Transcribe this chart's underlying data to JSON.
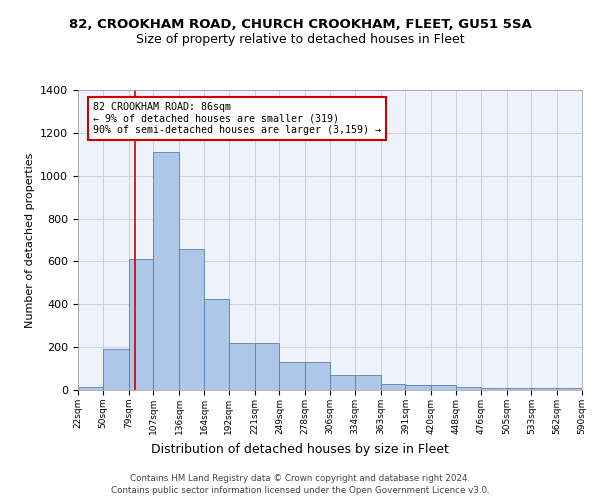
{
  "title1": "82, CROOKHAM ROAD, CHURCH CROOKHAM, FLEET, GU51 5SA",
  "title2": "Size of property relative to detached houses in Fleet",
  "xlabel": "Distribution of detached houses by size in Fleet",
  "ylabel": "Number of detached properties",
  "bar_values": [
    15,
    190,
    610,
    1110,
    660,
    425,
    220,
    220,
    130,
    130,
    70,
    70,
    30,
    25,
    25,
    15,
    10,
    10,
    10,
    10
  ],
  "bin_edges": [
    22,
    50,
    79,
    107,
    136,
    164,
    192,
    221,
    249,
    278,
    306,
    334,
    363,
    391,
    420,
    448,
    476,
    505,
    533,
    562,
    590
  ],
  "tick_labels": [
    "22sqm",
    "50sqm",
    "79sqm",
    "107sqm",
    "136sqm",
    "164sqm",
    "192sqm",
    "221sqm",
    "249sqm",
    "278sqm",
    "306sqm",
    "334sqm",
    "363sqm",
    "391sqm",
    "420sqm",
    "448sqm",
    "476sqm",
    "505sqm",
    "533sqm",
    "562sqm",
    "590sqm"
  ],
  "bar_color": "#aec6e8",
  "bar_edge_color": "#5580b0",
  "vline_x": 86,
  "vline_color": "#cc0000",
  "annotation_box_text": "82 CROOKHAM ROAD: 86sqm\n← 9% of detached houses are smaller (319)\n90% of semi-detached houses are larger (3,159) →",
  "annotation_box_color": "#cc0000",
  "ylim": [
    0,
    1400
  ],
  "yticks": [
    0,
    200,
    400,
    600,
    800,
    1000,
    1200,
    1400
  ],
  "footnote1": "Contains HM Land Registry data © Crown copyright and database right 2024.",
  "footnote2": "Contains public sector information licensed under the Open Government Licence v3.0.",
  "background_color": "#eef2fa",
  "grid_color": "#c8cfe0"
}
